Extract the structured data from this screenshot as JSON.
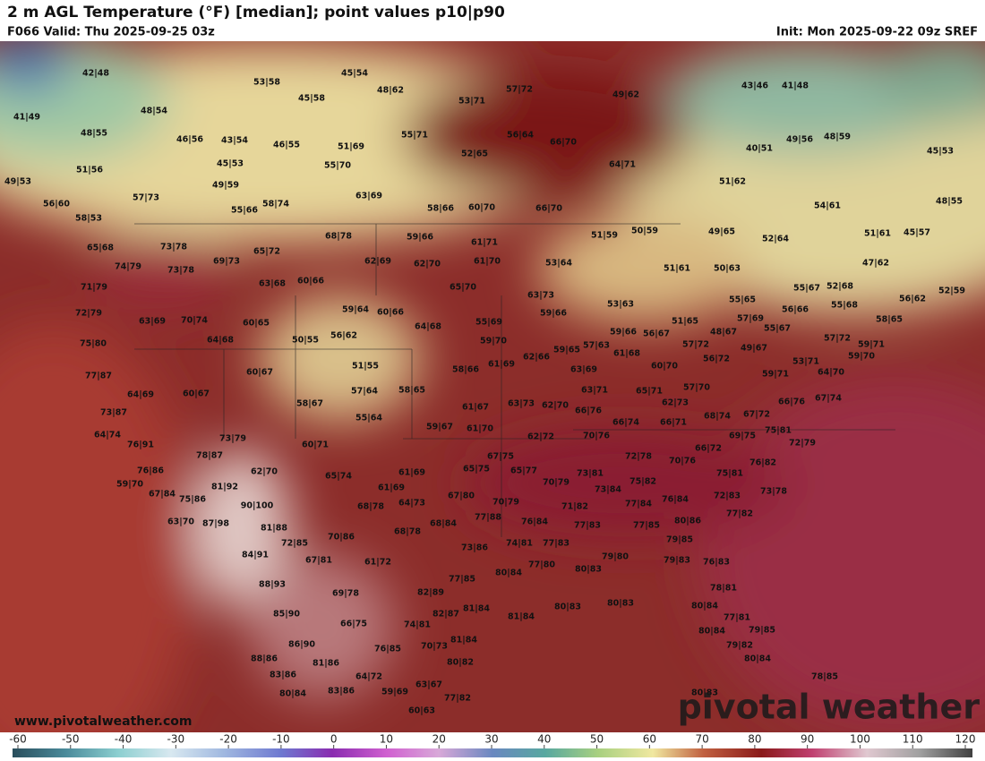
{
  "header": {
    "title": "2 m AGL Temperature (°F) [median]; point values p10|p90",
    "valid": "F066 Valid: Thu 2025-09-25 03z",
    "init": "Init: Mon 2025-09-22 09z SREF"
  },
  "footer": {
    "website": "www.pivotalweather.com",
    "logo": "pivotal weather"
  },
  "colorbar": {
    "ticks": [
      -60,
      -50,
      -40,
      -30,
      -20,
      -10,
      0,
      10,
      20,
      30,
      40,
      50,
      60,
      70,
      80,
      90,
      100,
      110,
      120
    ]
  },
  "points": [
    "42|48",
    "53|58",
    "45|54",
    "48|62",
    "45|58",
    "53|71",
    "57|72",
    "49|62",
    "43|46",
    "41|48",
    "41|49",
    "48|54",
    "48|55",
    "46|56",
    "43|54",
    "46|55",
    "51|69",
    "55|71",
    "56|64",
    "66|70",
    "49|56",
    "48|59",
    "45|53",
    "40|51",
    "51|56",
    "45|53",
    "55|70",
    "52|65",
    "64|71",
    "49|53",
    "49|59",
    "57|73",
    "63|69",
    "51|62",
    "56|60",
    "55|66",
    "58|74",
    "58|66",
    "60|70",
    "66|70",
    "54|61",
    "48|55",
    "58|53",
    "68|78",
    "59|66",
    "61|71",
    "51|59",
    "50|59",
    "49|65",
    "52|64",
    "51|61",
    "45|57",
    "65|68",
    "73|78",
    "65|72",
    "74|79",
    "73|78",
    "69|73",
    "62|69",
    "62|70",
    "61|70",
    "53|64",
    "51|61",
    "50|63",
    "47|62",
    "71|79",
    "63|68",
    "60|66",
    "65|70",
    "63|73",
    "55|67",
    "52|68",
    "52|59",
    "55|65",
    "53|63",
    "56|62",
    "72|79",
    "59|64",
    "60|66",
    "59|66",
    "56|66",
    "55|68",
    "63|69",
    "70|74",
    "60|65",
    "55|69",
    "51|65",
    "57|69",
    "58|65",
    "64|68",
    "56|67",
    "59|66",
    "48|67",
    "55|67",
    "50|55",
    "56|62",
    "64|68",
    "59|70",
    "57|72",
    "57|72",
    "59|71",
    "75|80",
    "57|63",
    "59|65",
    "61|68",
    "49|67",
    "59|70",
    "53|71",
    "62|66",
    "61|69",
    "51|55",
    "58|66",
    "60|70",
    "56|72",
    "60|67",
    "64|70",
    "63|69",
    "77|87",
    "59|71",
    "64|69",
    "60|67",
    "57|64",
    "58|65",
    "63|71",
    "65|71",
    "57|70",
    "67|74",
    "66|76",
    "58|67",
    "62|73",
    "63|73",
    "62|70",
    "61|67",
    "73|87",
    "66|76",
    "55|64",
    "66|71",
    "68|74",
    "67|72",
    "66|74",
    "75|81",
    "64|74",
    "59|67",
    "61|70",
    "62|72",
    "70|76",
    "69|75",
    "72|79",
    "76|91",
    "73|79",
    "60|71",
    "66|72",
    "78|87",
    "67|75",
    "72|78",
    "70|76",
    "76|82",
    "65|75",
    "65|77",
    "76|86",
    "62|70",
    "65|74",
    "61|69",
    "73|81",
    "75|81",
    "59|70",
    "81|92",
    "61|69",
    "75|82",
    "70|79",
    "73|84",
    "73|78",
    "67|84",
    "75|86",
    "67|80",
    "70|79",
    "64|73",
    "72|83",
    "76|84",
    "90|100",
    "68|78",
    "71|82",
    "77|84",
    "77|82",
    "63|70",
    "87|98",
    "77|88",
    "76|84",
    "68|84",
    "77|83",
    "77|85",
    "80|86",
    "81|88",
    "68|78",
    "70|86",
    "79|85",
    "72|85",
    "73|86",
    "74|81",
    "77|83",
    "84|91",
    "67|81",
    "61|72",
    "79|83",
    "76|83",
    "77|80",
    "80|84",
    "80|83",
    "79|80",
    "77|85",
    "88|93",
    "78|81",
    "82|89",
    "69|78",
    "81|84",
    "80|83",
    "80|83",
    "80|84",
    "82|87",
    "77|81",
    "81|84",
    "85|90",
    "66|75",
    "74|81",
    "80|84",
    "79|85",
    "86|90",
    "79|82",
    "81|84",
    "76|85",
    "70|73",
    "88|86",
    "81|86",
    "80|82",
    "80|84",
    "83|86",
    "64|72",
    "63|67",
    "78|85",
    "83|86",
    "59|69",
    "80|84",
    "77|82",
    "80|83",
    "60|63"
  ]
}
